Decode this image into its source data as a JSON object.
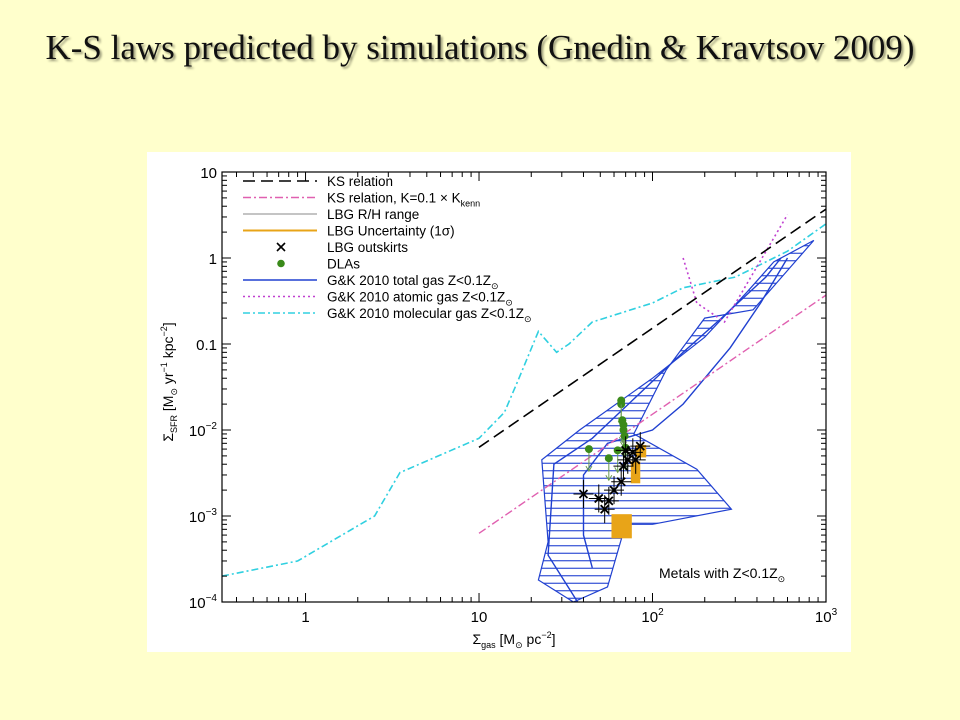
{
  "slide_title": "K-S laws predicted by simulations (Gnedin & Kravtsov 2009)",
  "colors": {
    "background": "#ffffcc",
    "ks_relation": "#000000",
    "ks_relation_01": "#e060b0",
    "lbg_rh": "#a0a0a0",
    "lbg_uncertainty": "#e8a418",
    "lbg_outskirts": "#000000",
    "dlas": "#3a8a1a",
    "gk_total": "#2040d0",
    "gk_atomic": "#c040d0",
    "gk_molecular": "#30d0e0"
  },
  "chart_data": {
    "type": "line",
    "xlabel": {
      "main": "Σ",
      "sub": "gas",
      "rest": " [M",
      "sun": "⊙",
      "tail": " pc",
      "sup": "−2",
      "end": "]"
    },
    "ylabel": {
      "main": "Σ",
      "sub": "SFR",
      "rest": " [M",
      "sun": "⊙",
      "mid": " yr",
      "sup1": "−1",
      "mid2": " kpc",
      "sup2": "−2",
      "end": "]"
    },
    "xscale": "log",
    "yscale": "log",
    "xlim": [
      0.33,
      1000
    ],
    "ylim": [
      0.0001,
      10
    ],
    "x_ticks": [
      {
        "value": 1,
        "label": "1"
      },
      {
        "value": 10,
        "label": "10"
      },
      {
        "value": 100,
        "base": "10",
        "exp": "2"
      },
      {
        "value": 1000,
        "base": "10",
        "exp": "3"
      }
    ],
    "y_ticks": [
      {
        "value": 10,
        "label": "10"
      },
      {
        "value": 1,
        "label": "1"
      },
      {
        "value": 0.1,
        "label": "0.1"
      },
      {
        "value": 0.01,
        "base": "10",
        "exp": "−2"
      },
      {
        "value": 0.001,
        "base": "10",
        "exp": "−3"
      },
      {
        "value": 0.0001,
        "base": "10",
        "exp": "−4"
      }
    ],
    "legend_position": "top-left",
    "legend": [
      {
        "key": "ks",
        "text": "KS relation"
      },
      {
        "key": "ks01",
        "text": "KS relation, K=0.1 × K",
        "sub": "kenn"
      },
      {
        "key": "lbgrh",
        "text": "LBG R/H range"
      },
      {
        "key": "lbgunc",
        "text": "LBG Uncertainty (1σ)"
      },
      {
        "key": "outsk",
        "text": "LBG outskirts"
      },
      {
        "key": "dla",
        "text": "DLAs"
      },
      {
        "key": "gktot",
        "text": "G&K 2010 total gas Z<0.1Z",
        "sub": "⊙"
      },
      {
        "key": "gkatom",
        "text": "G&K 2010 atomic gas Z<0.1Z",
        "sub": "⊙"
      },
      {
        "key": "gkmol",
        "text": "G&K 2010 molecular gas Z<0.1Z",
        "sub": "⊙"
      }
    ],
    "annotation": {
      "text": "Metals with Z<0.1Z",
      "sub": "⊙"
    },
    "series": {
      "ks_relation": [
        [
          10,
          0.0063
        ],
        [
          1000,
          3.7
        ]
      ],
      "ks_relation_01": [
        [
          10,
          0.00063
        ],
        [
          1000,
          0.37
        ]
      ],
      "molecular": [
        [
          0.33,
          0.0002
        ],
        [
          0.9,
          0.0003
        ],
        [
          2.5,
          0.001
        ],
        [
          3.5,
          0.0032
        ],
        [
          10,
          0.008
        ],
        [
          14,
          0.016
        ],
        [
          17,
          0.04
        ],
        [
          22,
          0.14
        ],
        [
          28,
          0.08
        ],
        [
          33,
          0.1
        ],
        [
          45,
          0.18
        ],
        [
          100,
          0.3
        ],
        [
          150,
          0.45
        ],
        [
          300,
          0.6
        ],
        [
          600,
          1.2
        ],
        [
          1000,
          2.5
        ]
      ],
      "atomic": [
        [
          150,
          1
        ],
        [
          180,
          0.3
        ],
        [
          260,
          0.18
        ],
        [
          600,
          3.2
        ]
      ],
      "total_band": [
        [
          35,
          0.0001
        ],
        [
          22,
          0.00018
        ],
        [
          25,
          0.0005
        ],
        [
          23,
          0.0045
        ],
        [
          38,
          0.01
        ],
        [
          100,
          0.04
        ],
        [
          200,
          0.12
        ],
        [
          350,
          0.4
        ],
        [
          500,
          0.9
        ],
        [
          850,
          1.6
        ],
        [
          380,
          0.25
        ],
        [
          200,
          0.2
        ],
        [
          120,
          0.05
        ],
        [
          78,
          0.009
        ],
        [
          180,
          0.0035
        ],
        [
          285,
          0.0012
        ],
        [
          100,
          0.0008
        ],
        [
          70,
          0.0008
        ],
        [
          55,
          0.00015
        ]
      ],
      "total_lines": [
        [
          [
            37,
            0.0001
          ],
          [
            25,
            0.00035
          ],
          [
            27,
            0.004
          ],
          [
            45,
            0.008
          ],
          [
            150,
            0.08
          ],
          [
            250,
            0.2
          ],
          [
            450,
            0.6
          ],
          [
            550,
            1
          ]
        ],
        [
          [
            45,
            0.00025
          ],
          [
            40,
            0.0006
          ],
          [
            40,
            0.003
          ],
          [
            55,
            0.007
          ],
          [
            100,
            0.01
          ],
          [
            150,
            0.02
          ],
          [
            280,
            0.09
          ],
          [
            420,
            0.3
          ],
          [
            600,
            1
          ]
        ]
      ],
      "lbg_uncertainty": [
        [
          [
            58,
            0.00055
          ],
          [
            76,
            0.00105
          ]
        ],
        [
          [
            75,
            0.0024
          ],
          [
            85,
            0.0043
          ]
        ],
        [
          [
            80,
            0.0048
          ],
          [
            92,
            0.0067
          ]
        ]
      ],
      "lbg_outskirts": [
        [
          40,
          0.0018
        ],
        [
          49,
          0.0016
        ],
        [
          53,
          0.0012
        ],
        [
          56,
          0.0015
        ],
        [
          60,
          0.002
        ],
        [
          66,
          0.0025
        ],
        [
          68,
          0.0038
        ],
        [
          72,
          0.0045
        ],
        [
          77,
          0.0055
        ],
        [
          80,
          0.0045
        ],
        [
          85,
          0.0065
        ],
        [
          70,
          0.0058
        ]
      ],
      "dlas": [
        [
          43,
          0.006
        ],
        [
          56,
          0.0047
        ],
        [
          63,
          0.0058
        ],
        [
          66,
          0.02
        ],
        [
          66,
          0.022
        ],
        [
          67,
          0.013
        ],
        [
          68,
          0.0115
        ],
        [
          68,
          0.01
        ],
        [
          69,
          0.0085
        ],
        [
          70,
          0.0062
        ]
      ]
    }
  }
}
